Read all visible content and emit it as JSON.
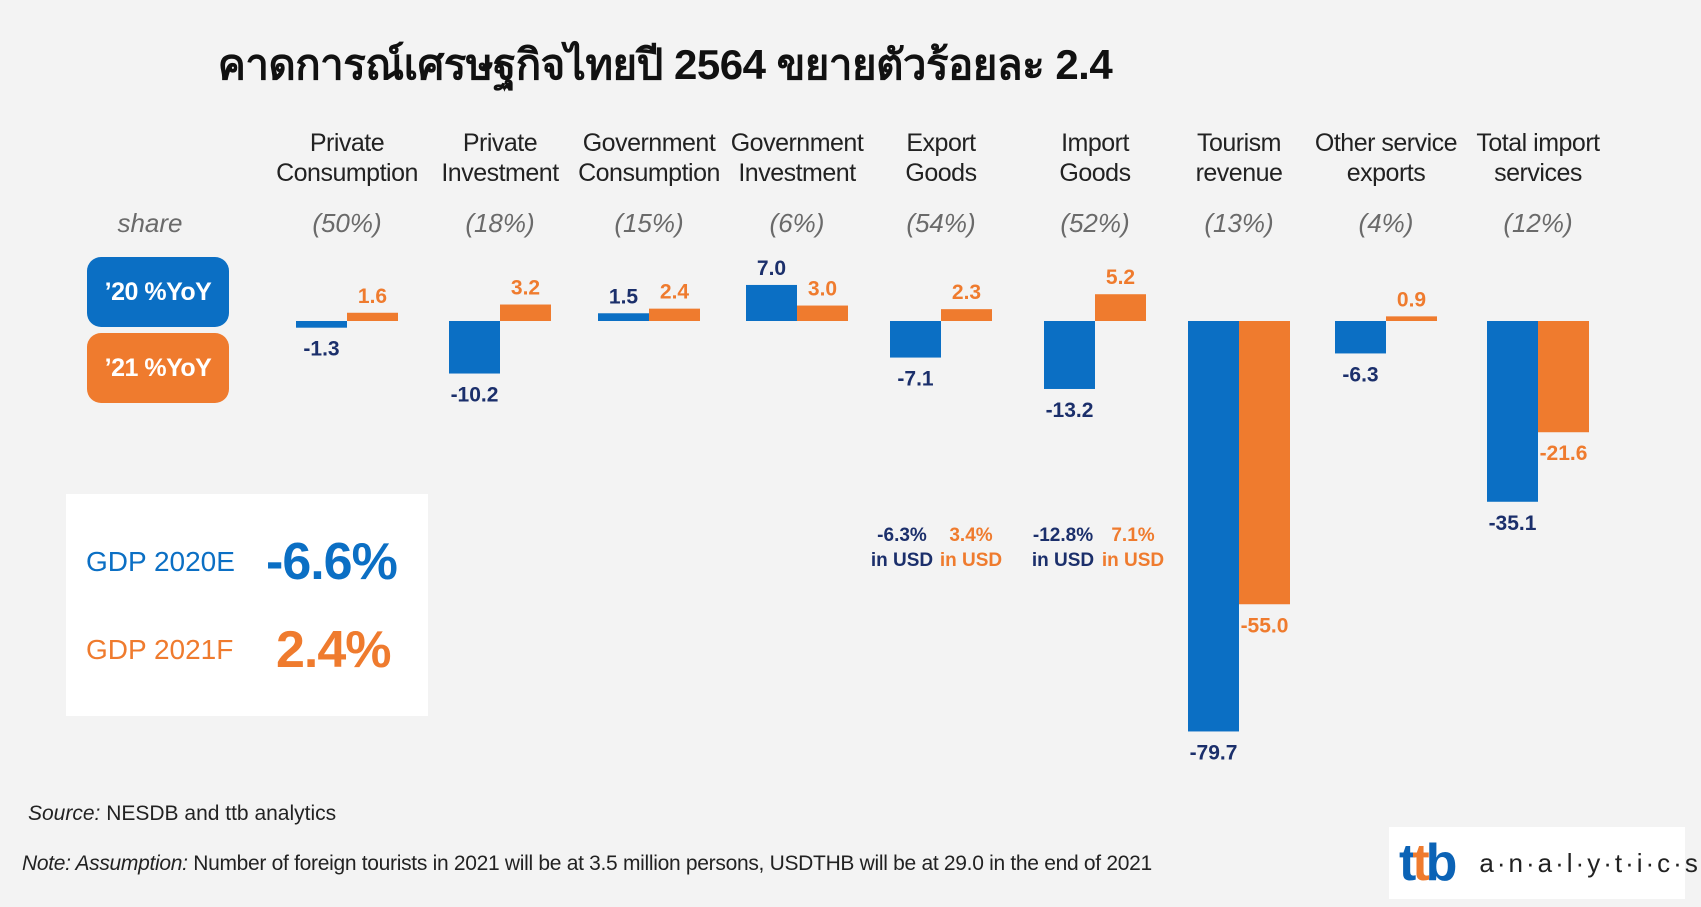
{
  "title": "คาดการณ์เศรษฐกิจไทยปี 2564 ขยายตัวร้อยละ 2.4",
  "legend": {
    "share_label": "share",
    "yoy20": "’20 %YoY",
    "yoy21": "’21 %YoY"
  },
  "colors": {
    "blue": "#0b6fc4",
    "orange": "#ef7b2e",
    "navy": "#1b2f6b"
  },
  "gdp": {
    "label_2020": "GDP 2020E",
    "value_2020": "-6.6%",
    "label_2021": "GDP 2021F",
    "value_2021": "2.4%"
  },
  "usd_notes": {
    "export_2020": "-6.3%\nin USD",
    "export_2021": "3.4%\nin USD",
    "import_2020": "-12.8%\nin USD",
    "import_2021": "7.1%\nin USD"
  },
  "source_prefix": "Source:",
  "source_text": " NESDB and ttb analytics",
  "note_prefix": "Note: Assumption:",
  "note_text": " Number of foreign tourists in 2021 will be at 3.5 million persons, USDTHB  will be at 29.0 in the end of 2021",
  "logo": {
    "mark_t1": "t",
    "mark_t2": "t",
    "mark_b": "b",
    "text": "a·n·a·l·y·t·i·c·s"
  },
  "chart_data": {
    "type": "bar",
    "categories": [
      "Private\nConsumption",
      "Private\nInvestment",
      "Government\nConsumption",
      "Government\nInvestment",
      "Export\nGoods",
      "Import\nGoods",
      "Tourism\nrevenue",
      "Other service\nexports",
      "Total import\nservices"
    ],
    "shares": [
      "(50%)",
      "(18%)",
      "(15%)",
      "(6%)",
      "(54%)",
      "(52%)",
      "(13%)",
      "(4%)",
      "(12%)"
    ],
    "series": [
      {
        "name": "’20 %YoY",
        "color": "#0b6fc4",
        "values": [
          -1.3,
          -10.2,
          1.5,
          7.0,
          -7.1,
          -13.2,
          -79.7,
          -6.3,
          -35.1
        ]
      },
      {
        "name": "’21 %YoY",
        "color": "#ef7b2e",
        "values": [
          1.6,
          3.2,
          2.4,
          3.0,
          2.3,
          5.2,
          -55.0,
          0.9,
          -21.6
        ]
      }
    ],
    "labels_2020": [
      "-1.3",
      "-10.2",
      "1.5",
      "7.0",
      "-7.1",
      "-13.2",
      "-79.7",
      "-6.3",
      "-35.1"
    ],
    "labels_2021": [
      "1.6",
      "3.2",
      "2.4",
      "3.0",
      "2.3",
      "5.2",
      "-55.0",
      "0.9",
      "-21.6"
    ],
    "grid": false,
    "legend_position": "left"
  }
}
